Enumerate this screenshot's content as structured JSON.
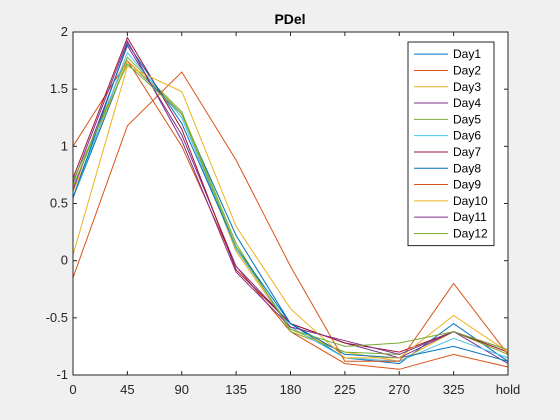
{
  "chart_data": {
    "type": "line",
    "title": "PDel",
    "xlabel": "",
    "ylabel": "",
    "categories": [
      "0",
      "45",
      "90",
      "135",
      "180",
      "225",
      "270",
      "325",
      "hold"
    ],
    "ylim": [
      -1,
      2
    ],
    "yticks": [
      -1,
      -0.5,
      0,
      0.5,
      1,
      1.5,
      2
    ],
    "ytick_labels": [
      "-1",
      "-0.5",
      "0",
      "0.5",
      "1",
      "1.5",
      "2"
    ],
    "grid": false,
    "legend_position": "top-right",
    "series": [
      {
        "name": "Day1",
        "color": "#0072bd",
        "values": [
          0.55,
          1.75,
          1.28,
          0.22,
          -0.55,
          -0.85,
          -0.9,
          -0.55,
          -0.88
        ]
      },
      {
        "name": "Day2",
        "color": "#d95319",
        "values": [
          1.0,
          1.75,
          1.0,
          -0.05,
          -0.62,
          -0.9,
          -0.95,
          -0.82,
          -0.93
        ]
      },
      {
        "name": "Day3",
        "color": "#edb120",
        "values": [
          0.6,
          1.75,
          1.3,
          0.08,
          -0.6,
          -0.8,
          -0.88,
          -0.62,
          -0.82
        ]
      },
      {
        "name": "Day4",
        "color": "#7e2f8e",
        "values": [
          0.62,
          1.88,
          1.1,
          -0.05,
          -0.55,
          -0.72,
          -0.85,
          -0.62,
          -0.9
        ]
      },
      {
        "name": "Day5",
        "color": "#77ac30",
        "values": [
          0.65,
          1.78,
          1.3,
          0.15,
          -0.62,
          -0.8,
          -0.82,
          -0.62,
          -0.82
        ]
      },
      {
        "name": "Day6",
        "color": "#4dbeee",
        "values": [
          0.55,
          1.82,
          1.25,
          0.1,
          -0.58,
          -0.85,
          -0.88,
          -0.68,
          -0.85
        ]
      },
      {
        "name": "Day7",
        "color": "#a2142f",
        "values": [
          0.72,
          1.95,
          1.15,
          -0.08,
          -0.55,
          -0.72,
          -0.8,
          -0.62,
          -0.8
        ]
      },
      {
        "name": "Day8",
        "color": "#0072bd",
        "values": [
          0.55,
          1.9,
          1.2,
          0.12,
          -0.55,
          -0.82,
          -0.85,
          -0.75,
          -0.88
        ]
      },
      {
        "name": "Day9",
        "color": "#d95319",
        "values": [
          -0.15,
          1.18,
          1.65,
          0.88,
          -0.05,
          -0.88,
          -0.88,
          -0.2,
          -0.82
        ]
      },
      {
        "name": "Day10",
        "color": "#edb120",
        "values": [
          0.05,
          1.7,
          1.48,
          0.3,
          -0.42,
          -0.85,
          -0.85,
          -0.48,
          -0.8
        ]
      },
      {
        "name": "Day11",
        "color": "#7e2f8e",
        "values": [
          0.68,
          1.92,
          1.05,
          -0.1,
          -0.58,
          -0.7,
          -0.82,
          -0.62,
          -0.78
        ]
      },
      {
        "name": "Day12",
        "color": "#77ac30",
        "values": [
          0.7,
          1.72,
          1.28,
          0.12,
          -0.6,
          -0.75,
          -0.72,
          -0.62,
          -0.78
        ]
      }
    ]
  }
}
